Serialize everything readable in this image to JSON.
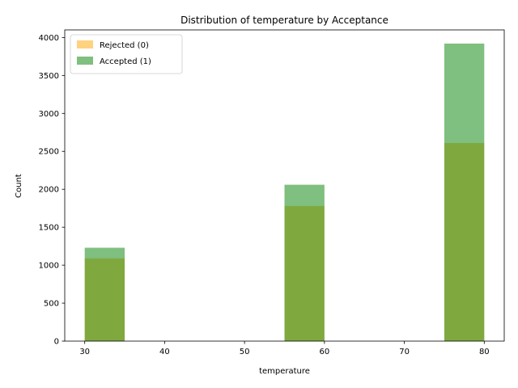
{
  "chart_data": {
    "type": "bar",
    "title": "Distribution of temperature by Acceptance",
    "xlabel": "temperature",
    "ylabel": "Count",
    "xlim": [
      27.5,
      82.5
    ],
    "ylim": [
      0,
      4100
    ],
    "xticks": [
      30,
      40,
      50,
      60,
      70,
      80
    ],
    "yticks": [
      0,
      500,
      1000,
      1500,
      2000,
      2500,
      3000,
      3500,
      4000
    ],
    "bins": [
      [
        30,
        35
      ],
      [
        55,
        60
      ],
      [
        75,
        80
      ]
    ],
    "legend_position": "top-left",
    "grid": false,
    "series": [
      {
        "name": "Rejected (0)",
        "color": "#ffa500",
        "opacity": 0.5,
        "values": [
          1090,
          1780,
          2610
        ]
      },
      {
        "name": "Accepted (1)",
        "color": "#008000",
        "opacity": 0.5,
        "values": [
          1230,
          2060,
          3920
        ]
      }
    ]
  }
}
